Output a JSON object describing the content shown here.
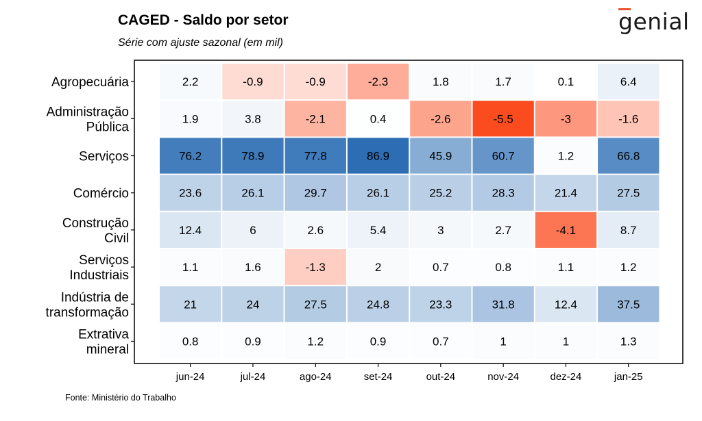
{
  "header": {
    "title": "CAGED - Saldo por setor",
    "subtitle": "Série com ajuste sazonal (em mil)",
    "brand": "genial"
  },
  "footer": {
    "source": "Fonte: Ministério do Trabalho"
  },
  "colors": {
    "positive": "#2c6db4",
    "negative": "#fb4c1f",
    "neutral": "#ffffff"
  },
  "chart_data": {
    "type": "heatmap",
    "title": "CAGED - Saldo por setor",
    "subtitle": "Série com ajuste sazonal (em mil)",
    "x_labels": [
      "jun-24",
      "jul-24",
      "ago-24",
      "set-24",
      "out-24",
      "nov-24",
      "dez-24",
      "jan-25"
    ],
    "y_labels": [
      [
        "Agropecuária"
      ],
      [
        "Administração",
        "Pública"
      ],
      [
        "Serviços"
      ],
      [
        "Comércio"
      ],
      [
        "Construção",
        "Civil"
      ],
      [
        "Serviços",
        "Industriais"
      ],
      [
        "Indústria de",
        "transformação"
      ],
      [
        "Extrativa",
        "mineral"
      ]
    ],
    "values": [
      [
        2.2,
        -0.9,
        -0.9,
        -2.3,
        1.8,
        1.7,
        0.1,
        6.4
      ],
      [
        1.9,
        3.8,
        -2.1,
        0.4,
        -2.6,
        -5.5,
        -3,
        -1.6
      ],
      [
        76.2,
        78.9,
        77.8,
        86.9,
        45.9,
        60.7,
        1.2,
        66.8
      ],
      [
        23.6,
        26.1,
        29.7,
        26.1,
        25.2,
        28.3,
        21.4,
        27.5
      ],
      [
        12.4,
        6,
        2.6,
        5.4,
        3,
        2.7,
        -4.1,
        8.7
      ],
      [
        1.1,
        1.6,
        -1.3,
        2,
        0.7,
        0.8,
        1.1,
        1.2
      ],
      [
        21,
        24,
        27.5,
        24.8,
        23.3,
        31.8,
        12.4,
        37.5
      ],
      [
        0.8,
        0.9,
        1.2,
        0.9,
        0.7,
        1,
        1,
        1.3
      ]
    ]
  }
}
